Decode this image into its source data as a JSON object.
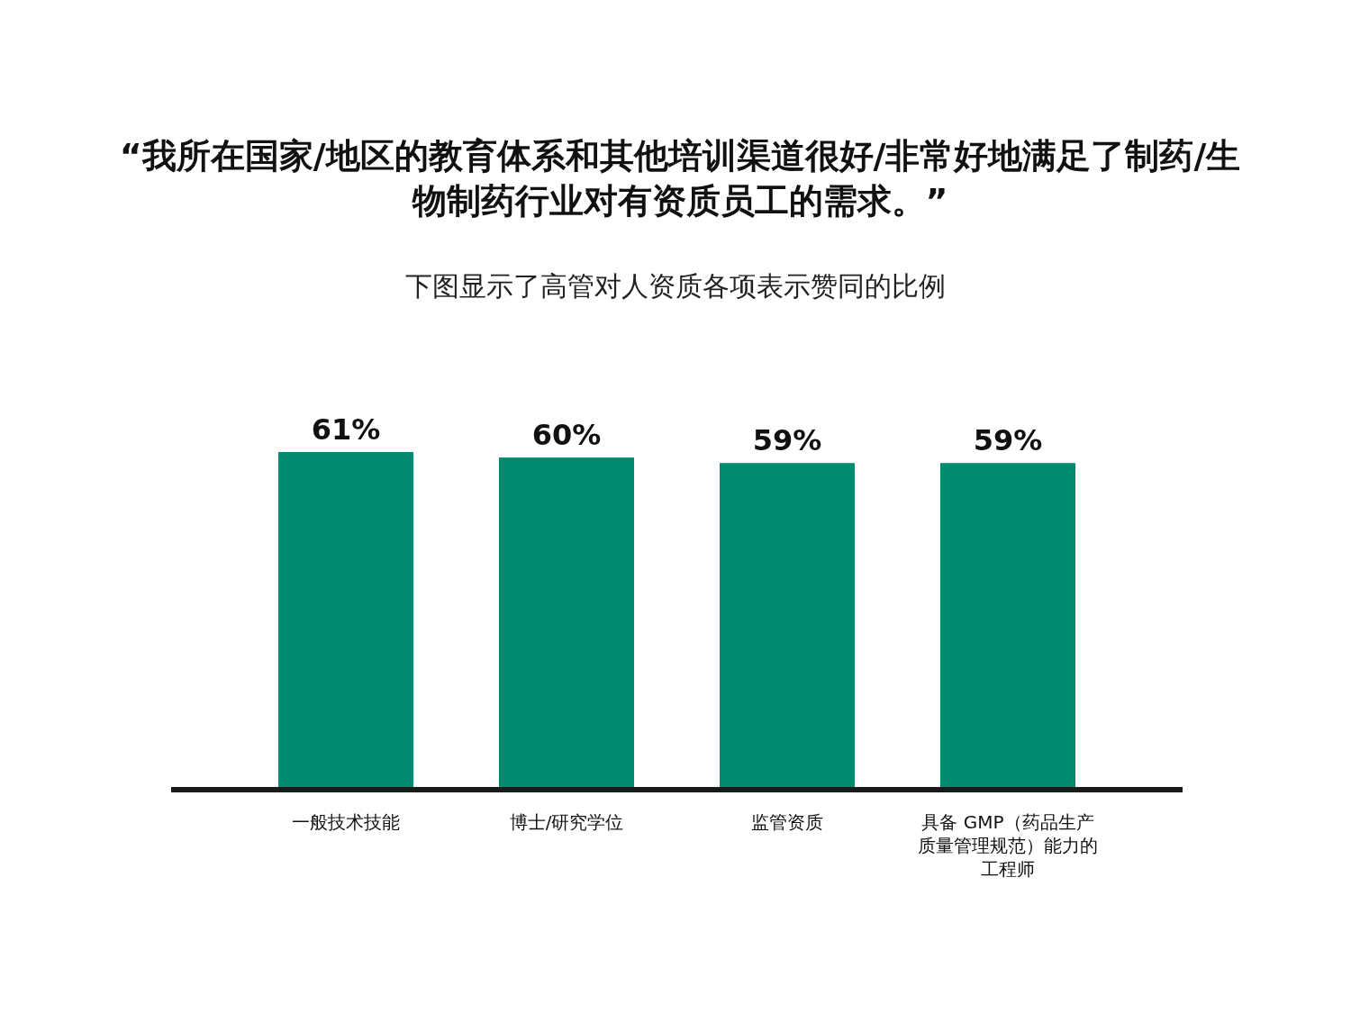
{
  "chart_data": {
    "type": "bar",
    "title": "“我所在国家/地区的教育体系和其他培训渠道很好/非常好地满足了制药/生物制药行业对有资质员工的需求。”",
    "subtitle": "下图显示了高管对人资质各项表示赞同的比例",
    "categories": [
      "一般技术技能",
      "博士/研究学位",
      "监管资质",
      "具备 GMP（药品生产质量管理规范）能力的工程师"
    ],
    "values": [
      61,
      60,
      59,
      59
    ],
    "color": "#008a6e",
    "value_labels": [
      "61%",
      "60%",
      "59%",
      "59%"
    ]
  }
}
